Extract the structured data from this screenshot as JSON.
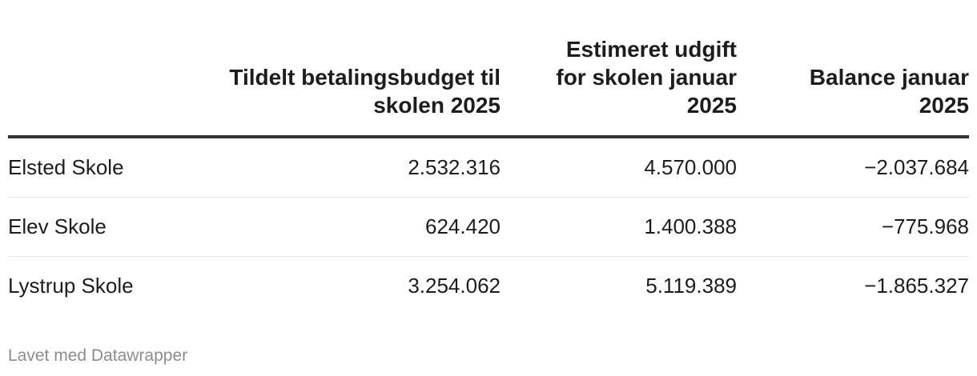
{
  "chart_data": {
    "type": "table",
    "columns": [
      "",
      "Tildelt betalingsbudget til skolen 2025",
      "Estimeret udgift for skolen januar 2025",
      "Balance januar 2025"
    ],
    "rows": [
      [
        "Elsted Skole",
        "2.532.316",
        "4.570.000",
        "−2.037.684"
      ],
      [
        "Elev Skole",
        "624.420",
        "1.400.388",
        "−775.968"
      ],
      [
        "Lystrup Skole",
        "3.254.062",
        "5.119.389",
        "−1.865.327"
      ]
    ]
  },
  "footer": {
    "credit": "Lavet med Datawrapper"
  }
}
